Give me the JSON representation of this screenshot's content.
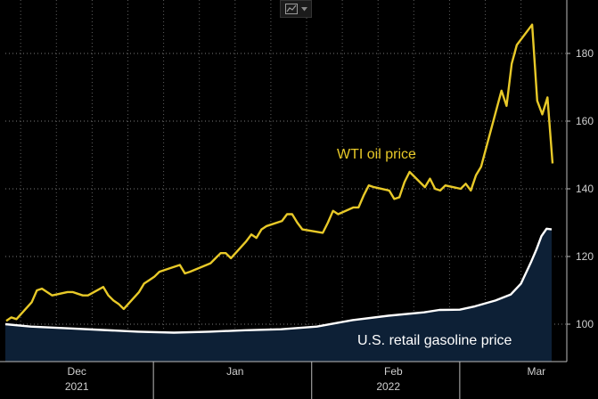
{
  "chart_data": {
    "type": "line",
    "title": "",
    "xlabel": "",
    "ylabel": "",
    "ylim": [
      90,
      190
    ],
    "yticks": [
      100,
      120,
      140,
      160,
      180
    ],
    "x_range": [
      "2021-11-17",
      "2022-03-04"
    ],
    "x_tick_labels": [
      {
        "label": "Dec",
        "date": "2021-12-01"
      },
      {
        "label": "Jan",
        "date": "2022-01-01"
      },
      {
        "label": "Feb",
        "date": "2022-02-01"
      },
      {
        "label": "Mar",
        "date": "2022-03-01"
      }
    ],
    "year_labels": [
      {
        "label": "2021",
        "date": "2021-12-01"
      },
      {
        "label": "2022",
        "date": "2022-01-31"
      }
    ],
    "week_gridline_dates": [
      "2021-11-20",
      "2021-11-27",
      "2021-12-04",
      "2021-12-11",
      "2021-12-18",
      "2021-12-25",
      "2022-01-01",
      "2022-01-08",
      "2022-01-15",
      "2022-01-22",
      "2022-01-29",
      "2022-02-05",
      "2022-02-12",
      "2022-02-19",
      "2022-02-26"
    ],
    "series": [
      {
        "name": "WTI oil price",
        "label": "WTI oil price",
        "color": "#e8c928",
        "dates": [
          "2021-11-17",
          "2021-11-18",
          "2021-11-19",
          "2021-11-22",
          "2021-11-23",
          "2021-11-24",
          "2021-11-26",
          "2021-11-29",
          "2021-11-30",
          "2021-12-01",
          "2021-12-02",
          "2021-12-03",
          "2021-12-06",
          "2021-12-07",
          "2021-12-08",
          "2021-12-09",
          "2021-12-10",
          "2021-12-13",
          "2021-12-14",
          "2021-12-15",
          "2021-12-16",
          "2021-12-17",
          "2021-12-20",
          "2021-12-21",
          "2021-12-22",
          "2021-12-23",
          "2021-12-27",
          "2021-12-28",
          "2021-12-29",
          "2021-12-30",
          "2021-12-31",
          "2022-01-03",
          "2022-01-04",
          "2022-01-05",
          "2022-01-06",
          "2022-01-07",
          "2022-01-10",
          "2022-01-11",
          "2022-01-12",
          "2022-01-13",
          "2022-01-14",
          "2022-01-18",
          "2022-01-19",
          "2022-01-20",
          "2022-01-21",
          "2022-01-24",
          "2022-01-25",
          "2022-01-26",
          "2022-01-27",
          "2022-01-28",
          "2022-01-31",
          "2022-02-01",
          "2022-02-02",
          "2022-02-03",
          "2022-02-04",
          "2022-02-07",
          "2022-02-08",
          "2022-02-09",
          "2022-02-10",
          "2022-02-11",
          "2022-02-14",
          "2022-02-15",
          "2022-02-16",
          "2022-02-17",
          "2022-02-18",
          "2022-02-22",
          "2022-02-23",
          "2022-02-24",
          "2022-02-25",
          "2022-02-28",
          "2022-03-01",
          "2022-03-02",
          "2022-03-03",
          "2022-03-04"
        ],
        "values": [
          101,
          102,
          101.5,
          106.5,
          110,
          110.5,
          108.5,
          109.5,
          109.5,
          109,
          108.5,
          108.5,
          111,
          108.5,
          107,
          106,
          104.5,
          109.5,
          112,
          113,
          114,
          115.5,
          117,
          117.5,
          115,
          115.5,
          118,
          119.5,
          121,
          121,
          119.5,
          124.5,
          126.5,
          125.5,
          128,
          129,
          130.5,
          132.5,
          132.5,
          130,
          128,
          127,
          130,
          133.5,
          132.5,
          134.5,
          134.5,
          138,
          141,
          140.5,
          139.5,
          137,
          137.5,
          142,
          145,
          140.5,
          143,
          140,
          139.5,
          141,
          140,
          141.5,
          139.5,
          144,
          146.5,
          169,
          164.5,
          177,
          182.5,
          188.5,
          166,
          162,
          167,
          147.5
        ]
      },
      {
        "name": "U.S. retail gasoline price",
        "label": "U.S. retail gasoline price",
        "color": "#ffffff",
        "area_color": "#0d2036",
        "dates": [
          "2021-11-17",
          "2021-11-22",
          "2021-11-29",
          "2021-12-06",
          "2021-12-13",
          "2021-12-20",
          "2021-12-27",
          "2022-01-03",
          "2022-01-10",
          "2022-01-17",
          "2022-01-24",
          "2022-01-31",
          "2022-02-07",
          "2022-02-10",
          "2022-02-14",
          "2022-02-17",
          "2022-02-21",
          "2022-02-24",
          "2022-02-26",
          "2022-02-28",
          "2022-03-01",
          "2022-03-02",
          "2022-03-03",
          "2022-03-04"
        ],
        "values": [
          100,
          99.3,
          98.8,
          98.3,
          97.8,
          97.5,
          97.8,
          98.2,
          98.5,
          99.3,
          101.2,
          102.5,
          103.5,
          104.2,
          104.3,
          105.3,
          107.0,
          108.8,
          112.0,
          118.5,
          122.0,
          126.0,
          128.2,
          128.0
        ]
      }
    ]
  }
}
